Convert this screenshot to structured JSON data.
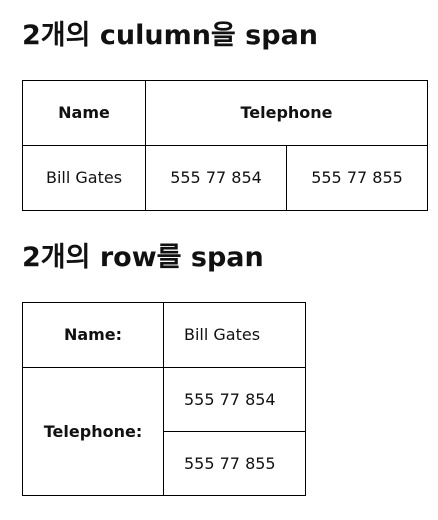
{
  "colspan_section": {
    "heading": "2개의 culumn을 span",
    "header_name": "Name",
    "header_telephone": "Telephone",
    "name": "Bill Gates",
    "phone_1": "555 77 854",
    "phone_2": "555 77 855"
  },
  "rowspan_section": {
    "heading": "2개의 row를 span",
    "name_label": "Name:",
    "name_value": "Bill Gates",
    "telephone_label": "Telephone:",
    "phone_1": "555 77 854",
    "phone_2": "555 77 855"
  }
}
